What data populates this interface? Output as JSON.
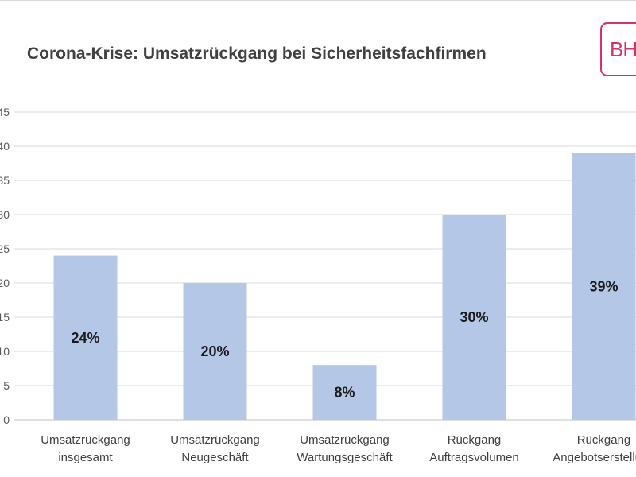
{
  "title": "Corona-Krise: Umsatzrückgang bei Sicherheitsfachfirmen",
  "logo_text": "BH",
  "chart_data": {
    "type": "bar",
    "title": "Corona-Krise: Umsatzrückgang bei Sicherheitsfachfirmen",
    "xlabel": "",
    "ylabel": "",
    "ylim": [
      0,
      45
    ],
    "yticks": [
      "0",
      "5",
      "10",
      "15",
      "20",
      "25",
      "30",
      "35",
      "40",
      "45"
    ],
    "grid": true,
    "categories": [
      [
        "Umsatzrückgang",
        "insgesamt"
      ],
      [
        "Umsatzrückgang",
        "Neugeschäft"
      ],
      [
        "Umsatzrückgang",
        "Wartungsgeschäft"
      ],
      [
        "Rückgang",
        "Auftragsvolumen"
      ],
      [
        "Rückgang",
        "Angebotserstellung"
      ]
    ],
    "values": [
      24,
      20,
      8,
      30,
      39
    ],
    "data_labels": [
      "24%",
      "20%",
      "8%",
      "30%",
      "39%"
    ],
    "bar_color": "#b4c7e7",
    "grid_color": "#d9d9d9"
  }
}
